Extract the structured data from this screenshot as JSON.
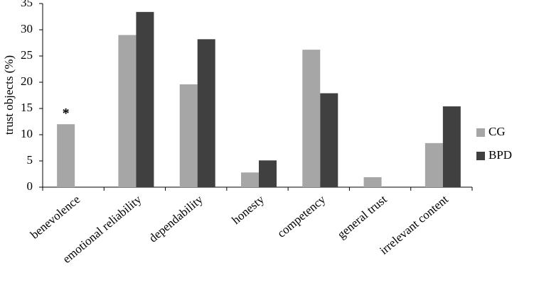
{
  "chart_data": {
    "type": "bar",
    "y_label": "trust objects (%)",
    "categories": [
      "benevolence",
      "emotional reliability",
      "dependability",
      "honesty",
      "competency",
      "general trust",
      "irrelevant content"
    ],
    "series": [
      {
        "name": "CG",
        "color": "#a6a6a6",
        "values": [
          12,
          29,
          19.6,
          2.8,
          26.2,
          1.9,
          8.4
        ]
      },
      {
        "name": "BPD",
        "color": "#404040",
        "values": [
          0,
          33.4,
          28.2,
          5.1,
          17.9,
          0,
          15.4
        ]
      }
    ],
    "annotations": [
      {
        "text": "*",
        "category": 0,
        "series": 0
      }
    ],
    "ylim": [
      0,
      35
    ],
    "yticks": [
      0,
      5,
      10,
      15,
      20,
      25,
      30,
      35
    ],
    "legend": "right"
  }
}
